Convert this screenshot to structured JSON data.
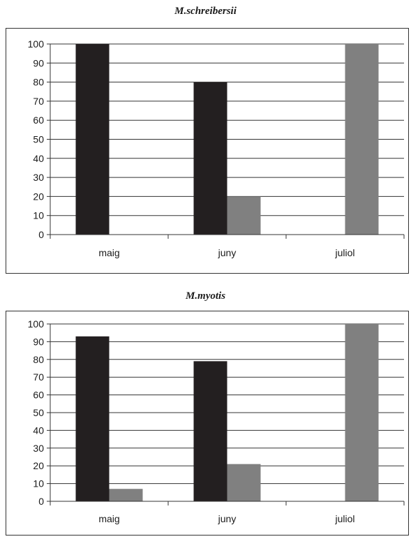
{
  "chart_data": [
    {
      "type": "bar",
      "title": "M.schreibersii",
      "categories": [
        "maig",
        "juny",
        "juliol"
      ],
      "series": [
        {
          "values": [
            100,
            80,
            0
          ],
          "color": "#231f20"
        },
        {
          "values": [
            0,
            20,
            100
          ],
          "color": "#808080"
        }
      ],
      "ylim": [
        0,
        100
      ],
      "yticks": [
        0,
        10,
        20,
        30,
        40,
        50,
        60,
        70,
        80,
        90,
        100
      ],
      "grid": true
    },
    {
      "type": "bar",
      "title": "M.myotis",
      "categories": [
        "maig",
        "juny",
        "juliol"
      ],
      "series": [
        {
          "values": [
            93,
            79,
            0
          ],
          "color": "#231f20"
        },
        {
          "values": [
            7,
            21,
            100
          ],
          "color": "#808080"
        }
      ],
      "ylim": [
        0,
        100
      ],
      "yticks": [
        0,
        10,
        20,
        30,
        40,
        50,
        60,
        70,
        80,
        90,
        100
      ],
      "grid": true
    }
  ]
}
